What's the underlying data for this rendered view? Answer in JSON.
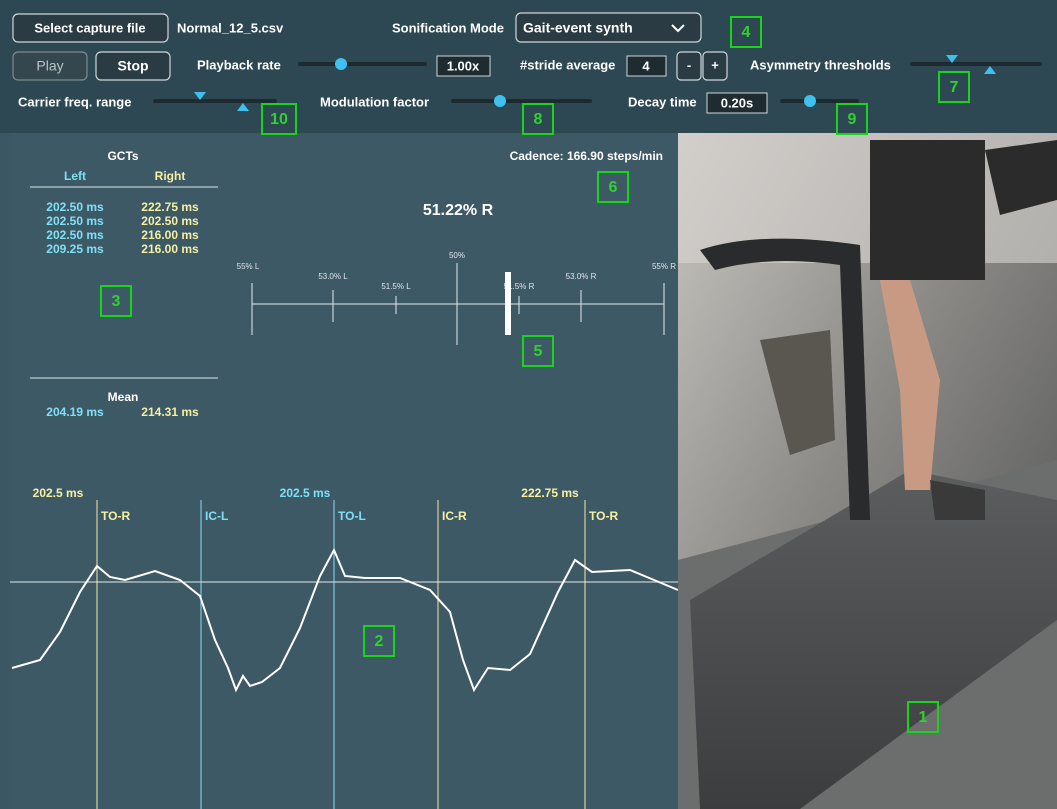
{
  "toolbar": {
    "select_button": "Select capture file",
    "file_name": "Normal_12_5.csv",
    "sonification_label": "Sonification Mode",
    "sonification_value": "Gait-event synth",
    "play": "Play",
    "stop": "Stop",
    "playback_label": "Playback rate",
    "playback_value": "1.00x",
    "stride_label": "#stride average",
    "stride_value": "4",
    "minus": "-",
    "plus": "+",
    "asymmetry_label": "Asymmetry thresholds",
    "carrier_label": "Carrier freq. range",
    "modulation_label": "Modulation factor",
    "decay_label": "Decay time",
    "decay_value": "0.20s"
  },
  "callouts": [
    "1",
    "2",
    "3",
    "4",
    "5",
    "6",
    "7",
    "8",
    "9",
    "10"
  ],
  "gct": {
    "title": "GCTs",
    "left_header": "Left",
    "right_header": "Right",
    "left": [
      "202.50 ms",
      "202.50 ms",
      "202.50 ms",
      "209.25 ms"
    ],
    "right": [
      "222.75 ms",
      "202.50 ms",
      "216.00 ms",
      "216.00 ms"
    ],
    "mean_title": "Mean",
    "mean_left": "204.19 ms",
    "mean_right": "214.31 ms"
  },
  "cadence": "Cadence: 166.90 steps/min",
  "asymmetry": {
    "value_label": "51.22% R",
    "scale_labels": [
      "55% L",
      "53.0% L",
      "51.5% L",
      "50%",
      "51.5% R",
      "53.0% R",
      "55% R"
    ]
  },
  "gait_plot": {
    "durations": [
      "202.5 ms",
      "202.5 ms",
      "222.75 ms"
    ],
    "events": [
      "TO-R",
      "IC-L",
      "TO-L",
      "IC-R",
      "TO-R"
    ]
  }
}
